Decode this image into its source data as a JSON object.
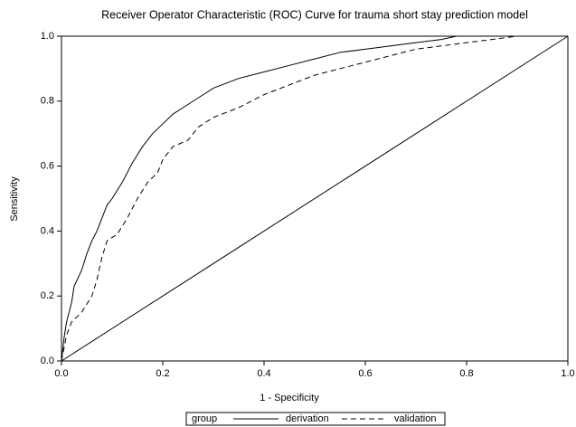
{
  "chart_data": {
    "type": "line",
    "title": "Receiver Operator Characteristic (ROC) Curve for trauma short stay prediction model",
    "x_label": "1 - Specificity",
    "y_label": "Sensitivity",
    "legend_title": "group",
    "xlim": [
      0,
      1
    ],
    "ylim": [
      0,
      1
    ],
    "xticks": [
      {
        "value": 0,
        "label": "0.0"
      },
      0.2,
      0.4,
      0.6,
      0.8,
      {
        "value": 1,
        "label": "1.0"
      }
    ],
    "yticks": [
      {
        "value": 0,
        "label": "0.0"
      },
      0.2,
      0.4,
      0.6,
      0.8,
      {
        "value": 1,
        "label": "1.0"
      }
    ],
    "series": [
      {
        "name": "derivation",
        "color": "#000000",
        "dashed": false,
        "x": [
          0,
          0.005,
          0.01,
          0.02,
          0.025,
          0.04,
          0.05,
          0.06,
          0.07,
          0.08,
          0.09,
          0.1,
          0.12,
          0.14,
          0.16,
          0.18,
          0.2,
          0.22,
          0.25,
          0.28,
          0.3,
          0.35,
          0.4,
          0.45,
          0.5,
          0.55,
          0.6,
          0.65,
          0.7,
          0.75,
          0.78,
          1
        ],
        "values": [
          0,
          0.07,
          0.12,
          0.18,
          0.23,
          0.28,
          0.33,
          0.37,
          0.4,
          0.44,
          0.48,
          0.5,
          0.55,
          0.61,
          0.66,
          0.7,
          0.73,
          0.76,
          0.79,
          0.82,
          0.84,
          0.87,
          0.89,
          0.91,
          0.93,
          0.95,
          0.96,
          0.97,
          0.98,
          0.99,
          1,
          1
        ]
      },
      {
        "name": "validation",
        "color": "#000000",
        "dashed": true,
        "x": [
          0,
          0.01,
          0.02,
          0.04,
          0.06,
          0.07,
          0.08,
          0.09,
          0.11,
          0.13,
          0.15,
          0.17,
          0.19,
          0.2,
          0.22,
          0.25,
          0.27,
          0.3,
          0.35,
          0.4,
          0.45,
          0.5,
          0.55,
          0.6,
          0.65,
          0.7,
          0.75,
          0.8,
          0.85,
          0.9,
          1
        ],
        "values": [
          0,
          0.08,
          0.12,
          0.15,
          0.2,
          0.25,
          0.32,
          0.37,
          0.39,
          0.44,
          0.5,
          0.55,
          0.58,
          0.62,
          0.66,
          0.68,
          0.72,
          0.75,
          0.78,
          0.82,
          0.85,
          0.88,
          0.9,
          0.92,
          0.94,
          0.96,
          0.97,
          0.98,
          0.99,
          1,
          1
        ]
      },
      {
        "color": "#000000",
        "dashed": false,
        "x": [
          0,
          1
        ],
        "values": [
          0,
          1
        ]
      }
    ]
  }
}
